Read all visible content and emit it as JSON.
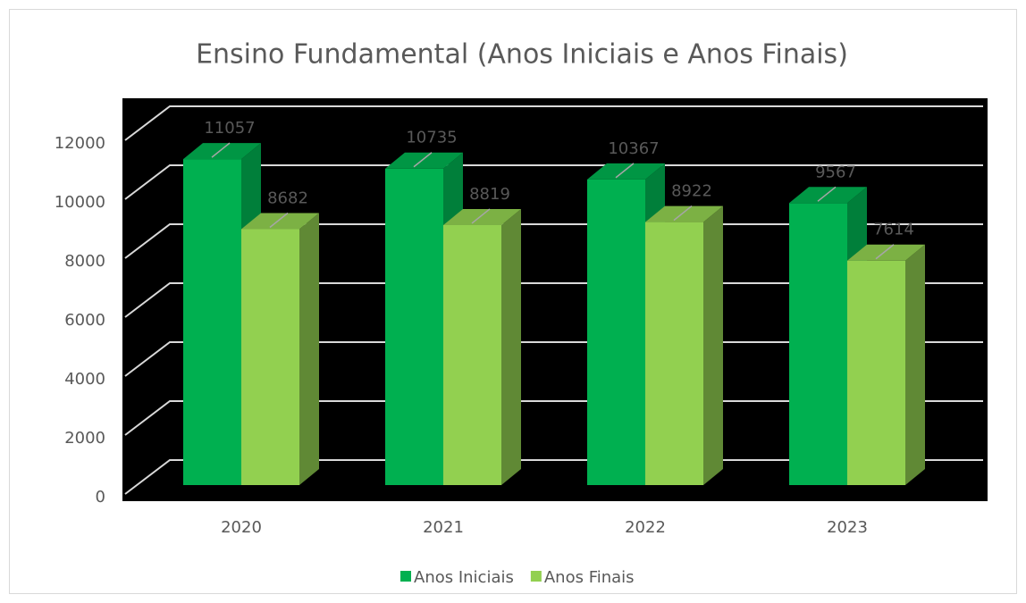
{
  "chart_data": {
    "type": "bar3d",
    "title": "Ensino Fundamental (Anos Iniciais e Anos Finais)",
    "categories": [
      "2020",
      "2021",
      "2022",
      "2023"
    ],
    "series": [
      {
        "name": "Anos Iniciais",
        "color": "#00b050",
        "values": [
          11057,
          10735,
          10367,
          9567
        ]
      },
      {
        "name": "Anos Finais",
        "color": "#92d050",
        "values": [
          8682,
          8819,
          8922,
          7614
        ]
      }
    ],
    "ylim": [
      0,
      12000
    ],
    "yticks": [
      0,
      2000,
      4000,
      6000,
      8000,
      10000,
      12000
    ],
    "grid": true,
    "legend": "bottom",
    "data_labels": true
  }
}
